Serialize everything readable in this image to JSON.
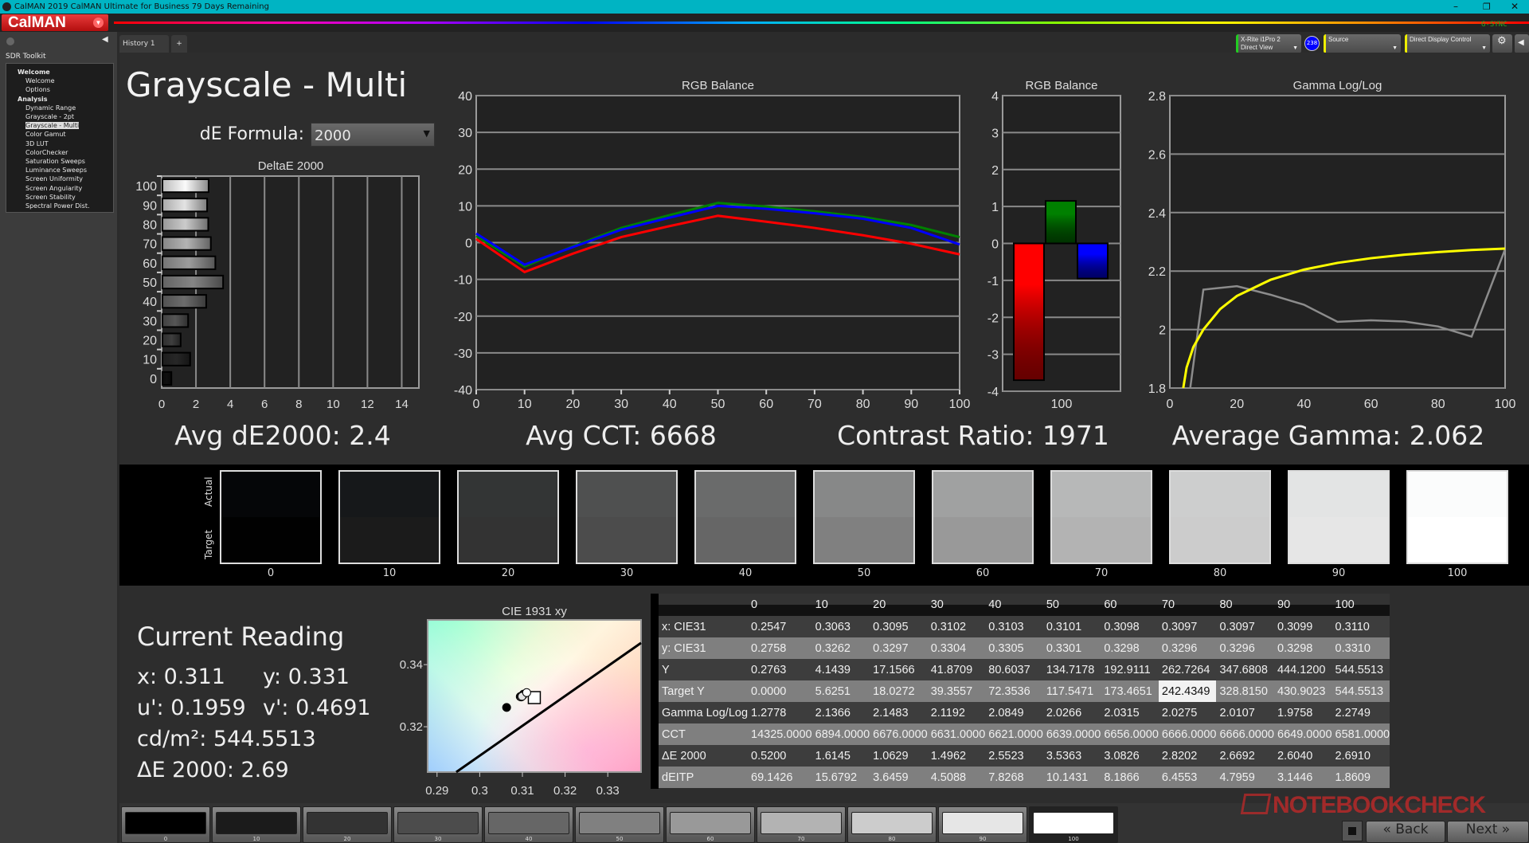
{
  "window": {
    "title": "CalMAN 2019 CalMAN Ultimate for Business 79 Days Remaining",
    "minimize": "–",
    "restore": "❐",
    "close": "✕"
  },
  "app": {
    "logo": "CalMAN",
    "gsync": "G-SYNC"
  },
  "toolbar": {
    "meter_line1": "X-Rite i1Pro 2",
    "meter_line2": "Direct View",
    "meter_badge": "238",
    "source": "Source",
    "display_control": "Direct Display Control"
  },
  "sidebar": {
    "title": "SDR Toolkit",
    "groups": [
      {
        "label": "Welcome",
        "items": [
          "Welcome",
          "Options"
        ]
      },
      {
        "label": "Analysis",
        "items": [
          "Dynamic Range",
          "Grayscale - 2pt",
          "Grayscale - Multi",
          "Color Gamut",
          "3D LUT",
          "ColorChecker",
          "Saturation Sweeps",
          "Luminance Sweeps",
          "Screen Uniformity",
          "Screen Angularity",
          "Screen Stability",
          "Spectral Power Dist."
        ]
      }
    ],
    "selected": "Grayscale - Multi"
  },
  "tabs": [
    {
      "label": "History 1"
    },
    {
      "label": "+"
    }
  ],
  "page": {
    "title": "Grayscale - Multi",
    "de_formula_label": "dE Formula:",
    "de_formula_value": "2000"
  },
  "summary": {
    "avg_de": "Avg dE2000: 2.4",
    "avg_cct": "Avg CCT: 6668",
    "contrast": "Contrast Ratio: 1971",
    "avg_gamma": "Average Gamma: 2.062"
  },
  "chart_data": [
    {
      "id": "deltae",
      "type": "bar",
      "orientation": "horizontal",
      "title": "DeltaE 2000",
      "categories": [
        "0",
        "10",
        "20",
        "30",
        "40",
        "50",
        "60",
        "70",
        "80",
        "90",
        "100"
      ],
      "values": [
        0.52,
        1.6145,
        1.0629,
        1.4962,
        2.5523,
        3.5363,
        3.0826,
        2.8202,
        2.6692,
        2.604,
        2.691
      ],
      "xlim": [
        0,
        15
      ],
      "xticks": [
        0,
        2,
        4,
        6,
        8,
        10,
        12,
        14
      ],
      "grid": true
    },
    {
      "id": "rgb_line",
      "type": "line",
      "title": "RGB Balance",
      "x": [
        0,
        10,
        20,
        30,
        40,
        50,
        60,
        70,
        80,
        90,
        100
      ],
      "xlim": [
        0,
        100
      ],
      "ylim": [
        -40,
        40
      ],
      "xticks": [
        0,
        10,
        20,
        30,
        40,
        50,
        60,
        70,
        80,
        90,
        100
      ],
      "yticks": [
        40,
        30,
        20,
        10,
        0,
        -10,
        -20,
        -30,
        -40
      ],
      "grid": true,
      "series": [
        {
          "color": "#ff0000",
          "values": [
            1,
            -8,
            -3,
            1.5,
            4.5,
            7.3,
            5.7,
            4,
            2,
            -0.3,
            -3.2
          ]
        },
        {
          "color": "#008000",
          "values": [
            1.8,
            -6.5,
            -1,
            4,
            7.5,
            10.8,
            9.8,
            8.5,
            7,
            4.8,
            1.5
          ]
        },
        {
          "color": "#0000ff",
          "values": [
            2.5,
            -6,
            -1.2,
            3.5,
            6.8,
            10,
            9.2,
            8,
            6.5,
            4,
            -0.5
          ]
        }
      ]
    },
    {
      "id": "rgb_bar",
      "type": "bar",
      "title": "RGB Balance",
      "categories": [
        "100"
      ],
      "ylim": [
        -4,
        4
      ],
      "yticks": [
        4,
        3,
        2,
        1,
        0,
        -1,
        -2,
        -3,
        -4
      ],
      "series": [
        {
          "color": "#ff0000",
          "values": [
            -3.7
          ]
        },
        {
          "color": "#008000",
          "values": [
            1.15
          ]
        },
        {
          "color": "#0000ff",
          "values": [
            -0.95
          ]
        }
      ],
      "grid": true
    },
    {
      "id": "gamma",
      "type": "line",
      "title": "Gamma Log/Log",
      "xlim": [
        0,
        100
      ],
      "ylim": [
        1.8,
        2.8
      ],
      "xticks": [
        0,
        20,
        40,
        60,
        80,
        100
      ],
      "yticks": [
        "2.8",
        "2.6",
        "2.4",
        "2.2",
        "2",
        "1.8"
      ],
      "grid": true,
      "series": [
        {
          "color": "#8c8c8c",
          "x": [
            0,
            10,
            20,
            30,
            40,
            50,
            60,
            70,
            80,
            90,
            100
          ],
          "values": [
            1.2778,
            2.1366,
            2.1483,
            2.1192,
            2.0849,
            2.0266,
            2.0315,
            2.0275,
            2.0107,
            1.9758,
            2.2749
          ]
        },
        {
          "color": "#ffff00",
          "x": [
            4,
            5,
            7,
            10,
            15,
            20,
            30,
            40,
            50,
            60,
            70,
            80,
            90,
            100
          ],
          "values": [
            1.8,
            1.87,
            1.94,
            2.0,
            2.07,
            2.115,
            2.17,
            2.205,
            2.228,
            2.244,
            2.256,
            2.265,
            2.272,
            2.277
          ]
        }
      ]
    },
    {
      "id": "cie",
      "type": "scatter",
      "title": "CIE 1931 xy",
      "xlim": [
        0.2878,
        0.3378
      ],
      "ylim": [
        0.3054,
        0.3544
      ],
      "xticks": [
        "0.29",
        "0.3",
        "0.31",
        "0.32",
        "0.33"
      ],
      "yticks": [
        "0.34",
        "0.32"
      ],
      "points": [
        {
          "x": 0.3063,
          "y": 0.3262
        },
        {
          "x": 0.3095,
          "y": 0.3297
        },
        {
          "x": 0.3102,
          "y": 0.3304
        },
        {
          "x": 0.3103,
          "y": 0.3305
        },
        {
          "x": 0.3101,
          "y": 0.3301
        },
        {
          "x": 0.3098,
          "y": 0.3298
        },
        {
          "x": 0.3097,
          "y": 0.3296
        },
        {
          "x": 0.3097,
          "y": 0.3296
        },
        {
          "x": 0.3099,
          "y": 0.3298
        },
        {
          "x": 0.311,
          "y": 0.331
        }
      ],
      "target": {
        "x": 0.3127,
        "y": 0.329
      },
      "planckian": [
        {
          "x": 0.2945,
          "y": 0.3054
        },
        {
          "x": 0.3378,
          "y": 0.347
        }
      ]
    }
  ],
  "swatches": {
    "actual_label": "Actual",
    "target_label": "Target",
    "items": [
      {
        "label": "0",
        "actual": "#050608",
        "target": "#010101"
      },
      {
        "label": "10",
        "actual": "#16181a",
        "target": "#1b1b1b"
      },
      {
        "label": "20",
        "actual": "#333535",
        "target": "#333333"
      },
      {
        "label": "30",
        "actual": "#4f5050",
        "target": "#4c4c4c"
      },
      {
        "label": "40",
        "actual": "#6a6b6b",
        "target": "#666666"
      },
      {
        "label": "50",
        "actual": "#878888",
        "target": "#808080"
      },
      {
        "label": "60",
        "actual": "#a0a1a1",
        "target": "#999999"
      },
      {
        "label": "70",
        "actual": "#b7b8b8",
        "target": "#b3b3b3"
      },
      {
        "label": "80",
        "actual": "#cdcece",
        "target": "#cccccc"
      },
      {
        "label": "90",
        "actual": "#e3e4e4",
        "target": "#e6e6e6"
      },
      {
        "label": "100",
        "actual": "#fbfcfc",
        "target": "#ffffff"
      }
    ]
  },
  "reading": {
    "title": "Current Reading",
    "x": "x: 0.311",
    "y": "y: 0.331",
    "u": "u': 0.1959",
    "v": "v': 0.4691",
    "cdm2": "cd/m²: 544.5513",
    "de": "ΔE 2000: 2.69"
  },
  "table": {
    "columns": [
      "",
      "0",
      "10",
      "20",
      "30",
      "40",
      "50",
      "60",
      "70",
      "80",
      "90",
      "100"
    ],
    "rows": [
      [
        "x: CIE31",
        "0.2547",
        "0.3063",
        "0.3095",
        "0.3102",
        "0.3103",
        "0.3101",
        "0.3098",
        "0.3097",
        "0.3097",
        "0.3099",
        "0.3110"
      ],
      [
        "y: CIE31",
        "0.2758",
        "0.3262",
        "0.3297",
        "0.3304",
        "0.3305",
        "0.3301",
        "0.3298",
        "0.3296",
        "0.3296",
        "0.3298",
        "0.3310"
      ],
      [
        "Y",
        "0.2763",
        "4.1439",
        "17.1566",
        "41.8709",
        "80.6037",
        "134.7178",
        "192.9111",
        "262.7264",
        "347.6808",
        "444.1200",
        "544.5513"
      ],
      [
        "Target Y",
        "0.0000",
        "5.6251",
        "18.0272",
        "39.3557",
        "72.3536",
        "117.5471",
        "173.4651",
        "242.4349",
        "328.8150",
        "430.9023",
        "544.5513"
      ],
      [
        "Gamma Log/Log",
        "1.2778",
        "2.1366",
        "2.1483",
        "2.1192",
        "2.0849",
        "2.0266",
        "2.0315",
        "2.0275",
        "2.0107",
        "1.9758",
        "2.2749"
      ],
      [
        "CCT",
        "14325.0000",
        "6894.0000",
        "6676.0000",
        "6631.0000",
        "6621.0000",
        "6639.0000",
        "6656.0000",
        "6666.0000",
        "6666.0000",
        "6649.0000",
        "6581.0000"
      ],
      [
        "ΔE 2000",
        "0.5200",
        "1.6145",
        "1.0629",
        "1.4962",
        "2.5523",
        "3.5363",
        "3.0826",
        "2.8202",
        "2.6692",
        "2.6040",
        "2.6910"
      ],
      [
        "dEITP",
        "69.1426",
        "15.6792",
        "3.6459",
        "4.5088",
        "7.8268",
        "10.1431",
        "8.1866",
        "6.4553",
        "4.7959",
        "3.1446",
        "1.8609"
      ]
    ]
  },
  "patches": [
    {
      "label": "0",
      "color": "#000000"
    },
    {
      "label": "10",
      "color": "#1b1b1b"
    },
    {
      "label": "20",
      "color": "#333333"
    },
    {
      "label": "30",
      "color": "#4c4c4c"
    },
    {
      "label": "40",
      "color": "#666666"
    },
    {
      "label": "50",
      "color": "#808080"
    },
    {
      "label": "60",
      "color": "#999999"
    },
    {
      "label": "70",
      "color": "#b3b3b3"
    },
    {
      "label": "80",
      "color": "#cccccc"
    },
    {
      "label": "90",
      "color": "#e6e6e6"
    },
    {
      "label": "100",
      "color": "#ffffff"
    }
  ],
  "nav": {
    "back": "Back",
    "next": "Next"
  },
  "watermark": "NOTEBOOKCHECK"
}
